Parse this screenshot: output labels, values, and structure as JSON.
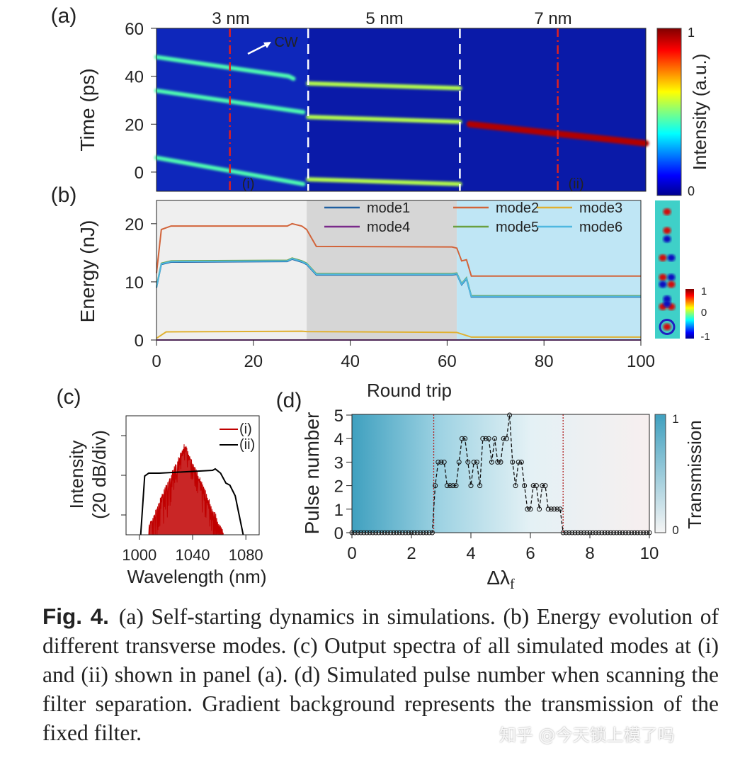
{
  "caption": {
    "label": "Fig. 4.",
    "text": "(a) Self-starting dynamics in simulations. (b) Energy evolution of different transverse modes. (c) Output spectra of all simulated modes at (i) and (ii) shown in panel (a). (d) Simulated pulse number when scanning the filter separation. Gradient background represents the transmission of the fixed filter.",
    "watermark": "知乎 @今天锁上模了吗"
  },
  "chart_data": [
    {
      "panel": "(a)",
      "type": "heatmap",
      "xlabel": "",
      "ylabel": "Time (ps)",
      "yticks": [
        0,
        20,
        40,
        60
      ],
      "ylim": [
        -8,
        60
      ],
      "xlim": [
        0,
        100
      ],
      "section_labels": [
        "3 nm",
        "5 nm",
        "7 nm"
      ],
      "section_boundaries": [
        31,
        62
      ],
      "markers": [
        {
          "x": 15,
          "label": "(i)"
        },
        {
          "x": 82,
          "label": "(ii)"
        }
      ],
      "annotation": "CW",
      "colorbar": {
        "label": "Intensity (a.u.)",
        "min": "0",
        "max": "1"
      },
      "traces": [
        {
          "points": [
            [
              0,
              48
            ],
            [
              27,
              40
            ],
            [
              28,
              39
            ]
          ],
          "intensity": 0.45
        },
        {
          "points": [
            [
              0,
              34
            ],
            [
              30,
              25
            ]
          ],
          "intensity": 0.45
        },
        {
          "points": [
            [
              0,
              6
            ],
            [
              30,
              -5
            ]
          ],
          "intensity": 0.45
        },
        {
          "points": [
            [
              31,
              37
            ],
            [
              62,
              35
            ]
          ],
          "intensity": 0.55
        },
        {
          "points": [
            [
              31,
              23
            ],
            [
              62,
              21
            ]
          ],
          "intensity": 0.55
        },
        {
          "points": [
            [
              31,
              -3
            ],
            [
              62,
              -5
            ]
          ],
          "intensity": 0.55
        },
        {
          "points": [
            [
              64,
              20
            ],
            [
              100,
              12
            ]
          ],
          "intensity": 0.95
        }
      ]
    },
    {
      "panel": "(b)",
      "type": "line",
      "xlabel": "Round trip",
      "ylabel": "Energy (nJ)",
      "xticks": [
        0,
        20,
        40,
        60,
        80,
        100
      ],
      "yticks": [
        0,
        10,
        20
      ],
      "xlim": [
        0,
        100
      ],
      "ylim": [
        0,
        24
      ],
      "legend": "top",
      "series": [
        {
          "name": "mode1",
          "color": "#1f5fa0",
          "points": [
            [
              0,
              9
            ],
            [
              1,
              13
            ],
            [
              3,
              13.4
            ],
            [
              27,
              13.5
            ],
            [
              28,
              13.9
            ],
            [
              30,
              13.4
            ],
            [
              31,
              13
            ],
            [
              33,
              11.2
            ],
            [
              61,
              11.2
            ],
            [
              62,
              11.3
            ],
            [
              63,
              9.5
            ],
            [
              64,
              10.5
            ],
            [
              65,
              7.4
            ],
            [
              100,
              7.4
            ]
          ]
        },
        {
          "name": "mode2",
          "color": "#d2643a",
          "points": [
            [
              0,
              11.5
            ],
            [
              1,
              19
            ],
            [
              3,
              19.6
            ],
            [
              27,
              19.6
            ],
            [
              28,
              20
            ],
            [
              30,
              19.6
            ],
            [
              31,
              19
            ],
            [
              33,
              16.1
            ],
            [
              61,
              16
            ],
            [
              62,
              15.8
            ],
            [
              63,
              13.6
            ],
            [
              64,
              13.8
            ],
            [
              65,
              11
            ],
            [
              100,
              11
            ]
          ]
        },
        {
          "name": "mode3",
          "color": "#e0b030",
          "points": [
            [
              0,
              0.3
            ],
            [
              2,
              1.4
            ],
            [
              30,
              1.5
            ],
            [
              31,
              1.45
            ],
            [
              62,
              1.3
            ],
            [
              65,
              0.5
            ],
            [
              100,
              0.5
            ]
          ]
        },
        {
          "name": "mode4",
          "color": "#7a2a8a",
          "points": [
            [
              0,
              0
            ],
            [
              100,
              0
            ]
          ]
        },
        {
          "name": "mode5",
          "color": "#6aa040",
          "points": [
            [
              0,
              9.2
            ],
            [
              1,
              13.2
            ],
            [
              3,
              13.6
            ],
            [
              27,
              13.7
            ],
            [
              28,
              14.1
            ],
            [
              30,
              13.6
            ],
            [
              31,
              13.2
            ],
            [
              33,
              11.4
            ],
            [
              61,
              11.4
            ],
            [
              62,
              11.5
            ],
            [
              63,
              9.7
            ],
            [
              64,
              10.7
            ],
            [
              65,
              7.6
            ],
            [
              100,
              7.6
            ]
          ]
        },
        {
          "name": "mode6",
          "color": "#4fb8e0",
          "points": [
            [
              0,
              9.1
            ],
            [
              1,
              13.1
            ],
            [
              3,
              13.5
            ],
            [
              27,
              13.6
            ],
            [
              28,
              14
            ],
            [
              30,
              13.5
            ],
            [
              31,
              13.1
            ],
            [
              33,
              11.3
            ],
            [
              61,
              11.3
            ],
            [
              62,
              11.4
            ],
            [
              63,
              9.6
            ],
            [
              64,
              10.6
            ],
            [
              65,
              7.5
            ],
            [
              100,
              7.5
            ]
          ]
        }
      ],
      "mode_colorbar": {
        "max": "1",
        "mid": "0",
        "min": "-1"
      }
    },
    {
      "panel": "(c)",
      "type": "line",
      "xlabel": "Wavelength (nm)",
      "ylabel": "Intensity (20 dB/div)",
      "xticks": [
        1000,
        1040,
        1080
      ],
      "xlim": [
        990,
        1090
      ],
      "legend": "top-right",
      "series": [
        {
          "name": "(i)",
          "color": "#c00000"
        },
        {
          "name": "(ii)",
          "color": "#000000"
        }
      ]
    },
    {
      "panel": "(d)",
      "type": "scatter",
      "xlabel": "Δλ",
      "xlabel_sub": "f",
      "ylabel": "Pulse number",
      "xticks": [
        0,
        2,
        4,
        6,
        8,
        10
      ],
      "yticks": [
        0,
        1,
        2,
        3,
        4,
        5
      ],
      "xlim": [
        0,
        10
      ],
      "ylim": [
        0,
        5
      ],
      "thresholds": [
        2.75,
        7.1
      ],
      "colorbar": {
        "label": "Transmission",
        "min": "0",
        "max": "1"
      },
      "x_start": 0,
      "x_step": 0.1,
      "values": [
        0,
        0,
        0,
        0,
        0,
        0,
        0,
        0,
        0,
        0,
        0,
        0,
        0,
        0,
        0,
        0,
        0,
        0,
        0,
        0,
        0,
        0,
        0,
        0,
        0,
        0,
        0,
        0,
        2,
        3,
        3,
        3,
        2,
        2,
        2,
        2,
        3,
        4,
        4,
        3,
        2,
        3,
        3,
        2,
        4,
        4,
        4,
        3,
        4,
        3,
        3,
        4,
        4,
        5,
        3,
        2,
        3,
        3,
        2,
        1,
        1,
        2,
        2,
        1,
        2,
        2,
        1,
        1,
        1,
        1,
        1,
        0,
        0,
        0,
        0,
        0,
        0,
        0,
        0,
        0,
        0,
        0,
        0,
        0,
        0,
        0,
        0,
        0,
        0,
        0,
        0,
        0,
        0,
        0,
        0,
        0,
        0,
        0,
        0,
        0,
        0
      ]
    }
  ]
}
